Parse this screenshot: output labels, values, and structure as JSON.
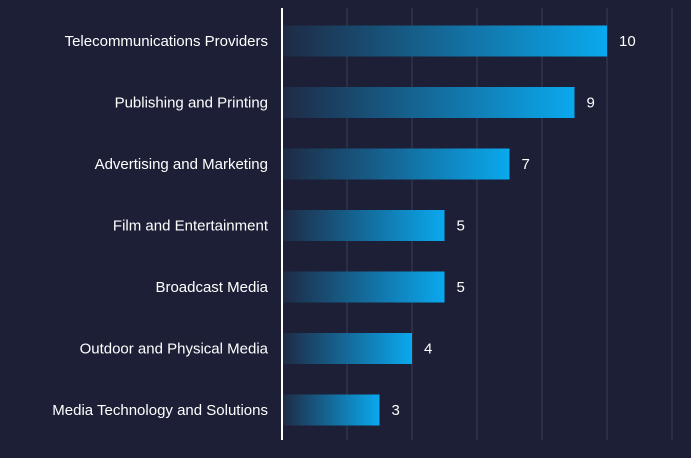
{
  "chart_data": {
    "type": "bar",
    "orientation": "horizontal",
    "categories": [
      "Telecommunications Providers",
      "Publishing and Printing",
      "Advertising and Marketing",
      "Film and Entertainment",
      "Broadcast Media",
      "Outdoor and Physical Media",
      "Media Technology and Solutions"
    ],
    "values": [
      10,
      9,
      7,
      5,
      5,
      4,
      3
    ],
    "value_labels": [
      "10",
      "9",
      "7",
      "5",
      "5",
      "4",
      "3"
    ],
    "title": "",
    "xlabel": "",
    "ylabel": "",
    "xlim": [
      0,
      12
    ],
    "grid": true,
    "legend": "none"
  },
  "colors": {
    "background": "#1c1f36",
    "bar_start": "#1e2a44",
    "bar_end": "#0aa9ee",
    "text": "#ffffff",
    "grid": "#3a3d56"
  }
}
